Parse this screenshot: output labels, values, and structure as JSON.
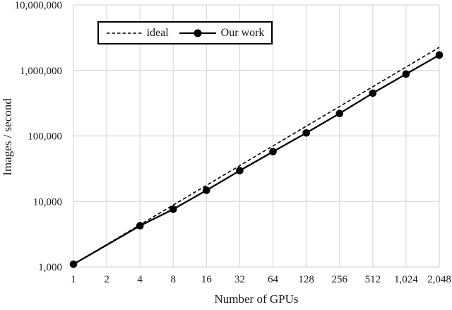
{
  "chart_data": {
    "type": "line",
    "title": "",
    "xlabel": "Number of GPUs",
    "ylabel": "Images / second",
    "x_scale": "log2",
    "y_scale": "log10",
    "ylim": [
      1000,
      10000000
    ],
    "grid": "on",
    "categories": [
      "1",
      "2",
      "4",
      "8",
      "16",
      "32",
      "64",
      "128",
      "256",
      "512",
      "1,024",
      "2,048"
    ],
    "category_values": [
      1,
      2,
      4,
      8,
      16,
      32,
      64,
      128,
      256,
      512,
      1024,
      2048
    ],
    "y_ticks": [
      {
        "value": 1000,
        "label": "1,000"
      },
      {
        "value": 10000,
        "label": "10,000"
      },
      {
        "value": 100000,
        "label": "100,000"
      },
      {
        "value": 1000000,
        "label": "1,000,000"
      },
      {
        "value": 10000000,
        "label": "10,000,000"
      }
    ],
    "series": [
      {
        "name": "ideal",
        "line_style": "dashed",
        "marker": "none",
        "color": "#000000",
        "x": [
          1,
          2,
          4,
          8,
          16,
          32,
          64,
          128,
          256,
          512,
          1024,
          2048
        ],
        "values": [
          1100,
          2200,
          4400,
          8800,
          17600,
          35200,
          70400,
          140800,
          281600,
          563200,
          1126400,
          2252800
        ]
      },
      {
        "name": "Our work",
        "line_style": "solid",
        "marker": "filled-circle",
        "color": "#000000",
        "x": [
          1,
          4,
          8,
          16,
          32,
          64,
          128,
          256,
          512,
          1024,
          2048
        ],
        "values": [
          1100,
          4250,
          7600,
          14800,
          29500,
          57500,
          111000,
          220000,
          450000,
          880000,
          1720000
        ]
      }
    ],
    "legend": {
      "position": "top-inside",
      "entries": [
        "ideal",
        "Our work"
      ]
    },
    "colors": {
      "line": "#000000",
      "grid": "#d9d9d9",
      "background": "#ffffff",
      "text": "#1a1a1a"
    }
  }
}
